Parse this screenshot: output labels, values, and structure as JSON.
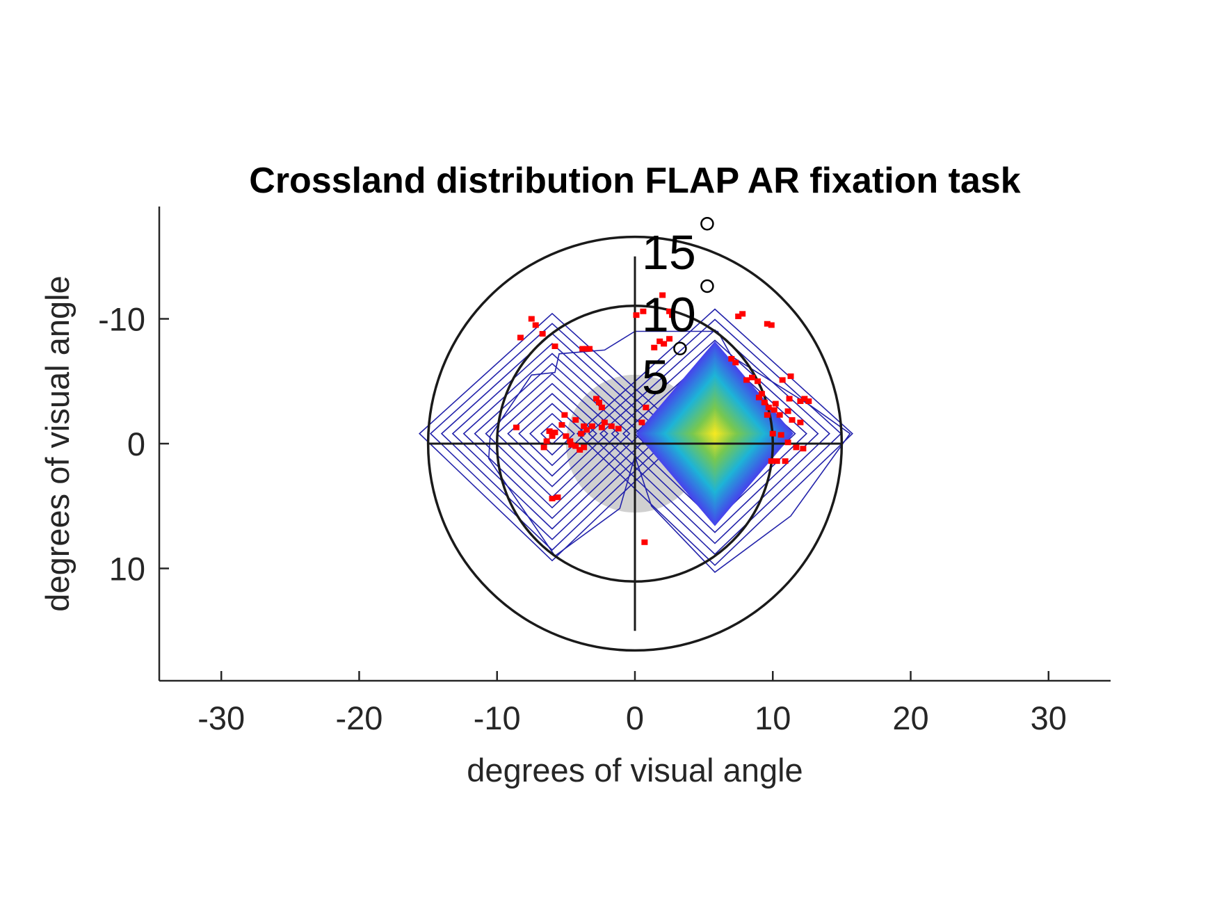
{
  "chart_data": {
    "type": "scatter",
    "title": "Crossland distribution FLAP AR fixation task",
    "xlabel": "degrees of visual angle",
    "ylabel": "degrees of visual angle",
    "xlim": [
      -34.5,
      34.5
    ],
    "ylim": [
      -19,
      19
    ],
    "y_direction": "reversed",
    "xticks": [
      -30,
      -20,
      -10,
      0,
      10,
      20,
      30
    ],
    "xtick_labels": [
      "-30",
      "-20",
      "-10",
      "0",
      "10",
      "20",
      "30"
    ],
    "yticks": [
      -10,
      0,
      10
    ],
    "ytick_labels": [
      "-10",
      "0",
      "10"
    ],
    "grid": false,
    "rings": [
      {
        "radius": 15,
        "label": "15"
      },
      {
        "radius": 10,
        "label": "10"
      },
      {
        "radius": 5,
        "label": "5"
      }
    ],
    "degree_symbol": "°",
    "central_scotoma_radius": 5,
    "colors": {
      "points": "#ff0000",
      "contour": "#2222aa",
      "scotoma": "#d0d0d0",
      "rings": "#1a1a1a",
      "density_peak": "#ffee22",
      "density_base": "#4444ee"
    },
    "density_peaks": [
      {
        "x": 5.8,
        "y": -0.8,
        "extent": 5.7,
        "filled": true
      },
      {
        "x": -6,
        "y": -0.8,
        "extent": 5.5,
        "filled": false
      }
    ],
    "contour_levels": 12,
    "points": [
      [
        -7.5,
        -10
      ],
      [
        -7.2,
        -9.5
      ],
      [
        -8.3,
        -8.5
      ],
      [
        -6.7,
        -8.8
      ],
      [
        -5.8,
        -7.8
      ],
      [
        -3.5,
        -7.6
      ],
      [
        -3.3,
        -7.6
      ],
      [
        -3.8,
        -7.6
      ],
      [
        -8.6,
        -1.3
      ],
      [
        -6.2,
        -1
      ],
      [
        -6,
        -0.6
      ],
      [
        -5.8,
        -0.9
      ],
      [
        -5.3,
        -1.5
      ],
      [
        -5.1,
        -2.3
      ],
      [
        -5.0,
        -0.6
      ],
      [
        -4.7,
        -0.2
      ],
      [
        -4.3,
        0.2
      ],
      [
        -4.0,
        0.5
      ],
      [
        -3.7,
        0.3
      ],
      [
        -3.9,
        -0.8
      ],
      [
        -3.7,
        -1.4
      ],
      [
        -3.5,
        -1.1
      ],
      [
        -3.1,
        -1.4
      ],
      [
        -2.8,
        -3.6
      ],
      [
        -2.6,
        -3.3
      ],
      [
        -2.4,
        -2.9
      ],
      [
        -2.2,
        -1.7
      ],
      [
        -2.4,
        -1.3
      ],
      [
        -1.7,
        -1.4
      ],
      [
        -1.2,
        -1.2
      ],
      [
        -6.6,
        0.3
      ],
      [
        -6.4,
        -0.2
      ],
      [
        -5.6,
        4.3
      ],
      [
        -6.0,
        4.4
      ],
      [
        -4.3,
        -1.9
      ],
      [
        -4.6,
        0.1
      ],
      [
        0.1,
        -10.3
      ],
      [
        0.6,
        -10.6
      ],
      [
        2.0,
        -11.9
      ],
      [
        2.5,
        -10.6
      ],
      [
        2.7,
        -10.3
      ],
      [
        1.8,
        -8.2
      ],
      [
        2.1,
        -8.0
      ],
      [
        2.5,
        -8.4
      ],
      [
        1.4,
        -7.7
      ],
      [
        0.5,
        -1.7
      ],
      [
        0.8,
        -2.9
      ],
      [
        0.7,
        7.9
      ],
      [
        7.5,
        -10.2
      ],
      [
        7.8,
        -10.4
      ],
      [
        9.6,
        -9.6
      ],
      [
        9.9,
        -9.5
      ],
      [
        7.0,
        -6.8
      ],
      [
        7.3,
        -6.5
      ],
      [
        8.1,
        -5.1
      ],
      [
        8.5,
        -5.3
      ],
      [
        8.9,
        -5.0
      ],
      [
        10.7,
        -5.1
      ],
      [
        11.3,
        -5.4
      ],
      [
        12.3,
        -3.6
      ],
      [
        12.0,
        -3.4
      ],
      [
        11.2,
        -3.6
      ],
      [
        10.2,
        -3.2
      ],
      [
        9.4,
        -3.3
      ],
      [
        9.7,
        -2.9
      ],
      [
        10.5,
        -2.3
      ],
      [
        11.1,
        -2.6
      ],
      [
        11.4,
        -1.9
      ],
      [
        12.0,
        -1.7
      ],
      [
        10.0,
        -0.8
      ],
      [
        10.6,
        -0.7
      ],
      [
        11.1,
        -0.1
      ],
      [
        11.7,
        0.3
      ],
      [
        12.2,
        0.4
      ],
      [
        9.9,
        1.4
      ],
      [
        10.3,
        1.4
      ],
      [
        10.9,
        1.4
      ],
      [
        9.6,
        -2.3
      ],
      [
        10.1,
        -2.7
      ],
      [
        12.6,
        -3.4
      ],
      [
        9.2,
        -4.0
      ],
      [
        9.0,
        -3.7
      ]
    ]
  }
}
